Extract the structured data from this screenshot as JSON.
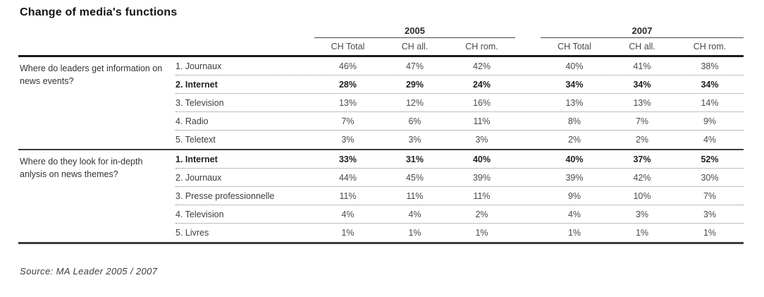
{
  "title": "Change of media's functions",
  "source_note": "Source: MA Leader 2005 / 2007",
  "colors": {
    "text": "#3d3d3d",
    "emphasis_text": "#1f1f1f",
    "rule_heavy": "#1b1b1b",
    "rule_light": "#7d7d7d",
    "background": "#ffffff"
  },
  "table": {
    "year_groups": [
      {
        "label": "2005"
      },
      {
        "label": "2007"
      }
    ],
    "column_headers": [
      "CH Total",
      "CH all.",
      "CH rom.",
      "CH Total",
      "CH all.",
      "CH rom."
    ],
    "groups": [
      {
        "question": "Where do leaders get information on news events?",
        "rows": [
          {
            "media": "1. Journaux",
            "emphasis": false,
            "values": [
              "46%",
              "47%",
              "42%",
              "40%",
              "41%",
              "38%"
            ]
          },
          {
            "media": "2. Internet",
            "emphasis": true,
            "values": [
              "28%",
              "29%",
              "24%",
              "34%",
              "34%",
              "34%"
            ]
          },
          {
            "media": "3. Television",
            "emphasis": false,
            "values": [
              "13%",
              "12%",
              "16%",
              "13%",
              "13%",
              "14%"
            ]
          },
          {
            "media": "4. Radio",
            "emphasis": false,
            "values": [
              "7%",
              "6%",
              "11%",
              "8%",
              "7%",
              "9%"
            ]
          },
          {
            "media": "5. Teletext",
            "emphasis": false,
            "values": [
              "3%",
              "3%",
              "3%",
              "2%",
              "2%",
              "4%"
            ]
          }
        ]
      },
      {
        "question": "Where do they look for in-depth anlysis on news themes?",
        "rows": [
          {
            "media": "1. Internet",
            "emphasis": true,
            "values": [
              "33%",
              "31%",
              "40%",
              "40%",
              "37%",
              "52%"
            ]
          },
          {
            "media": "2. Journaux",
            "emphasis": false,
            "values": [
              "44%",
              "45%",
              "39%",
              "39%",
              "42%",
              "30%"
            ]
          },
          {
            "media": "3. Presse professionnelle",
            "emphasis": false,
            "values": [
              "11%",
              "11%",
              "11%",
              "9%",
              "10%",
              "7%"
            ]
          },
          {
            "media": "4. Television",
            "emphasis": false,
            "values": [
              "4%",
              "4%",
              "2%",
              "4%",
              "3%",
              "3%"
            ]
          },
          {
            "media": "5. Livres",
            "emphasis": false,
            "values": [
              "1%",
              "1%",
              "1%",
              "1%",
              "1%",
              "1%"
            ]
          }
        ]
      }
    ]
  },
  "chart_data": {
    "type": "table",
    "title": "Change of media's functions",
    "columns": [
      "2005 CH Total",
      "2005 CH all.",
      "2005 CH rom.",
      "2007 CH Total",
      "2007 CH all.",
      "2007 CH rom."
    ],
    "sections": [
      {
        "question": "Where do leaders get information on news events?",
        "rows": [
          {
            "media": "Journaux",
            "values_pct": [
              46,
              47,
              42,
              40,
              41,
              38
            ]
          },
          {
            "media": "Internet",
            "values_pct": [
              28,
              29,
              24,
              34,
              34,
              34
            ],
            "highlighted": true
          },
          {
            "media": "Television",
            "values_pct": [
              13,
              12,
              16,
              13,
              13,
              14
            ]
          },
          {
            "media": "Radio",
            "values_pct": [
              7,
              6,
              11,
              8,
              7,
              9
            ]
          },
          {
            "media": "Teletext",
            "values_pct": [
              3,
              3,
              3,
              2,
              2,
              4
            ]
          }
        ]
      },
      {
        "question": "Where do they look for in-depth anlysis on news themes?",
        "rows": [
          {
            "media": "Internet",
            "values_pct": [
              33,
              31,
              40,
              40,
              37,
              52
            ],
            "highlighted": true
          },
          {
            "media": "Journaux",
            "values_pct": [
              44,
              45,
              39,
              39,
              42,
              30
            ]
          },
          {
            "media": "Presse professionnelle",
            "values_pct": [
              11,
              11,
              11,
              9,
              10,
              7
            ]
          },
          {
            "media": "Television",
            "values_pct": [
              4,
              4,
              2,
              4,
              3,
              3
            ]
          },
          {
            "media": "Livres",
            "values_pct": [
              1,
              1,
              1,
              1,
              1,
              1
            ]
          }
        ]
      }
    ],
    "source": "MA Leader 2005 / 2007"
  }
}
